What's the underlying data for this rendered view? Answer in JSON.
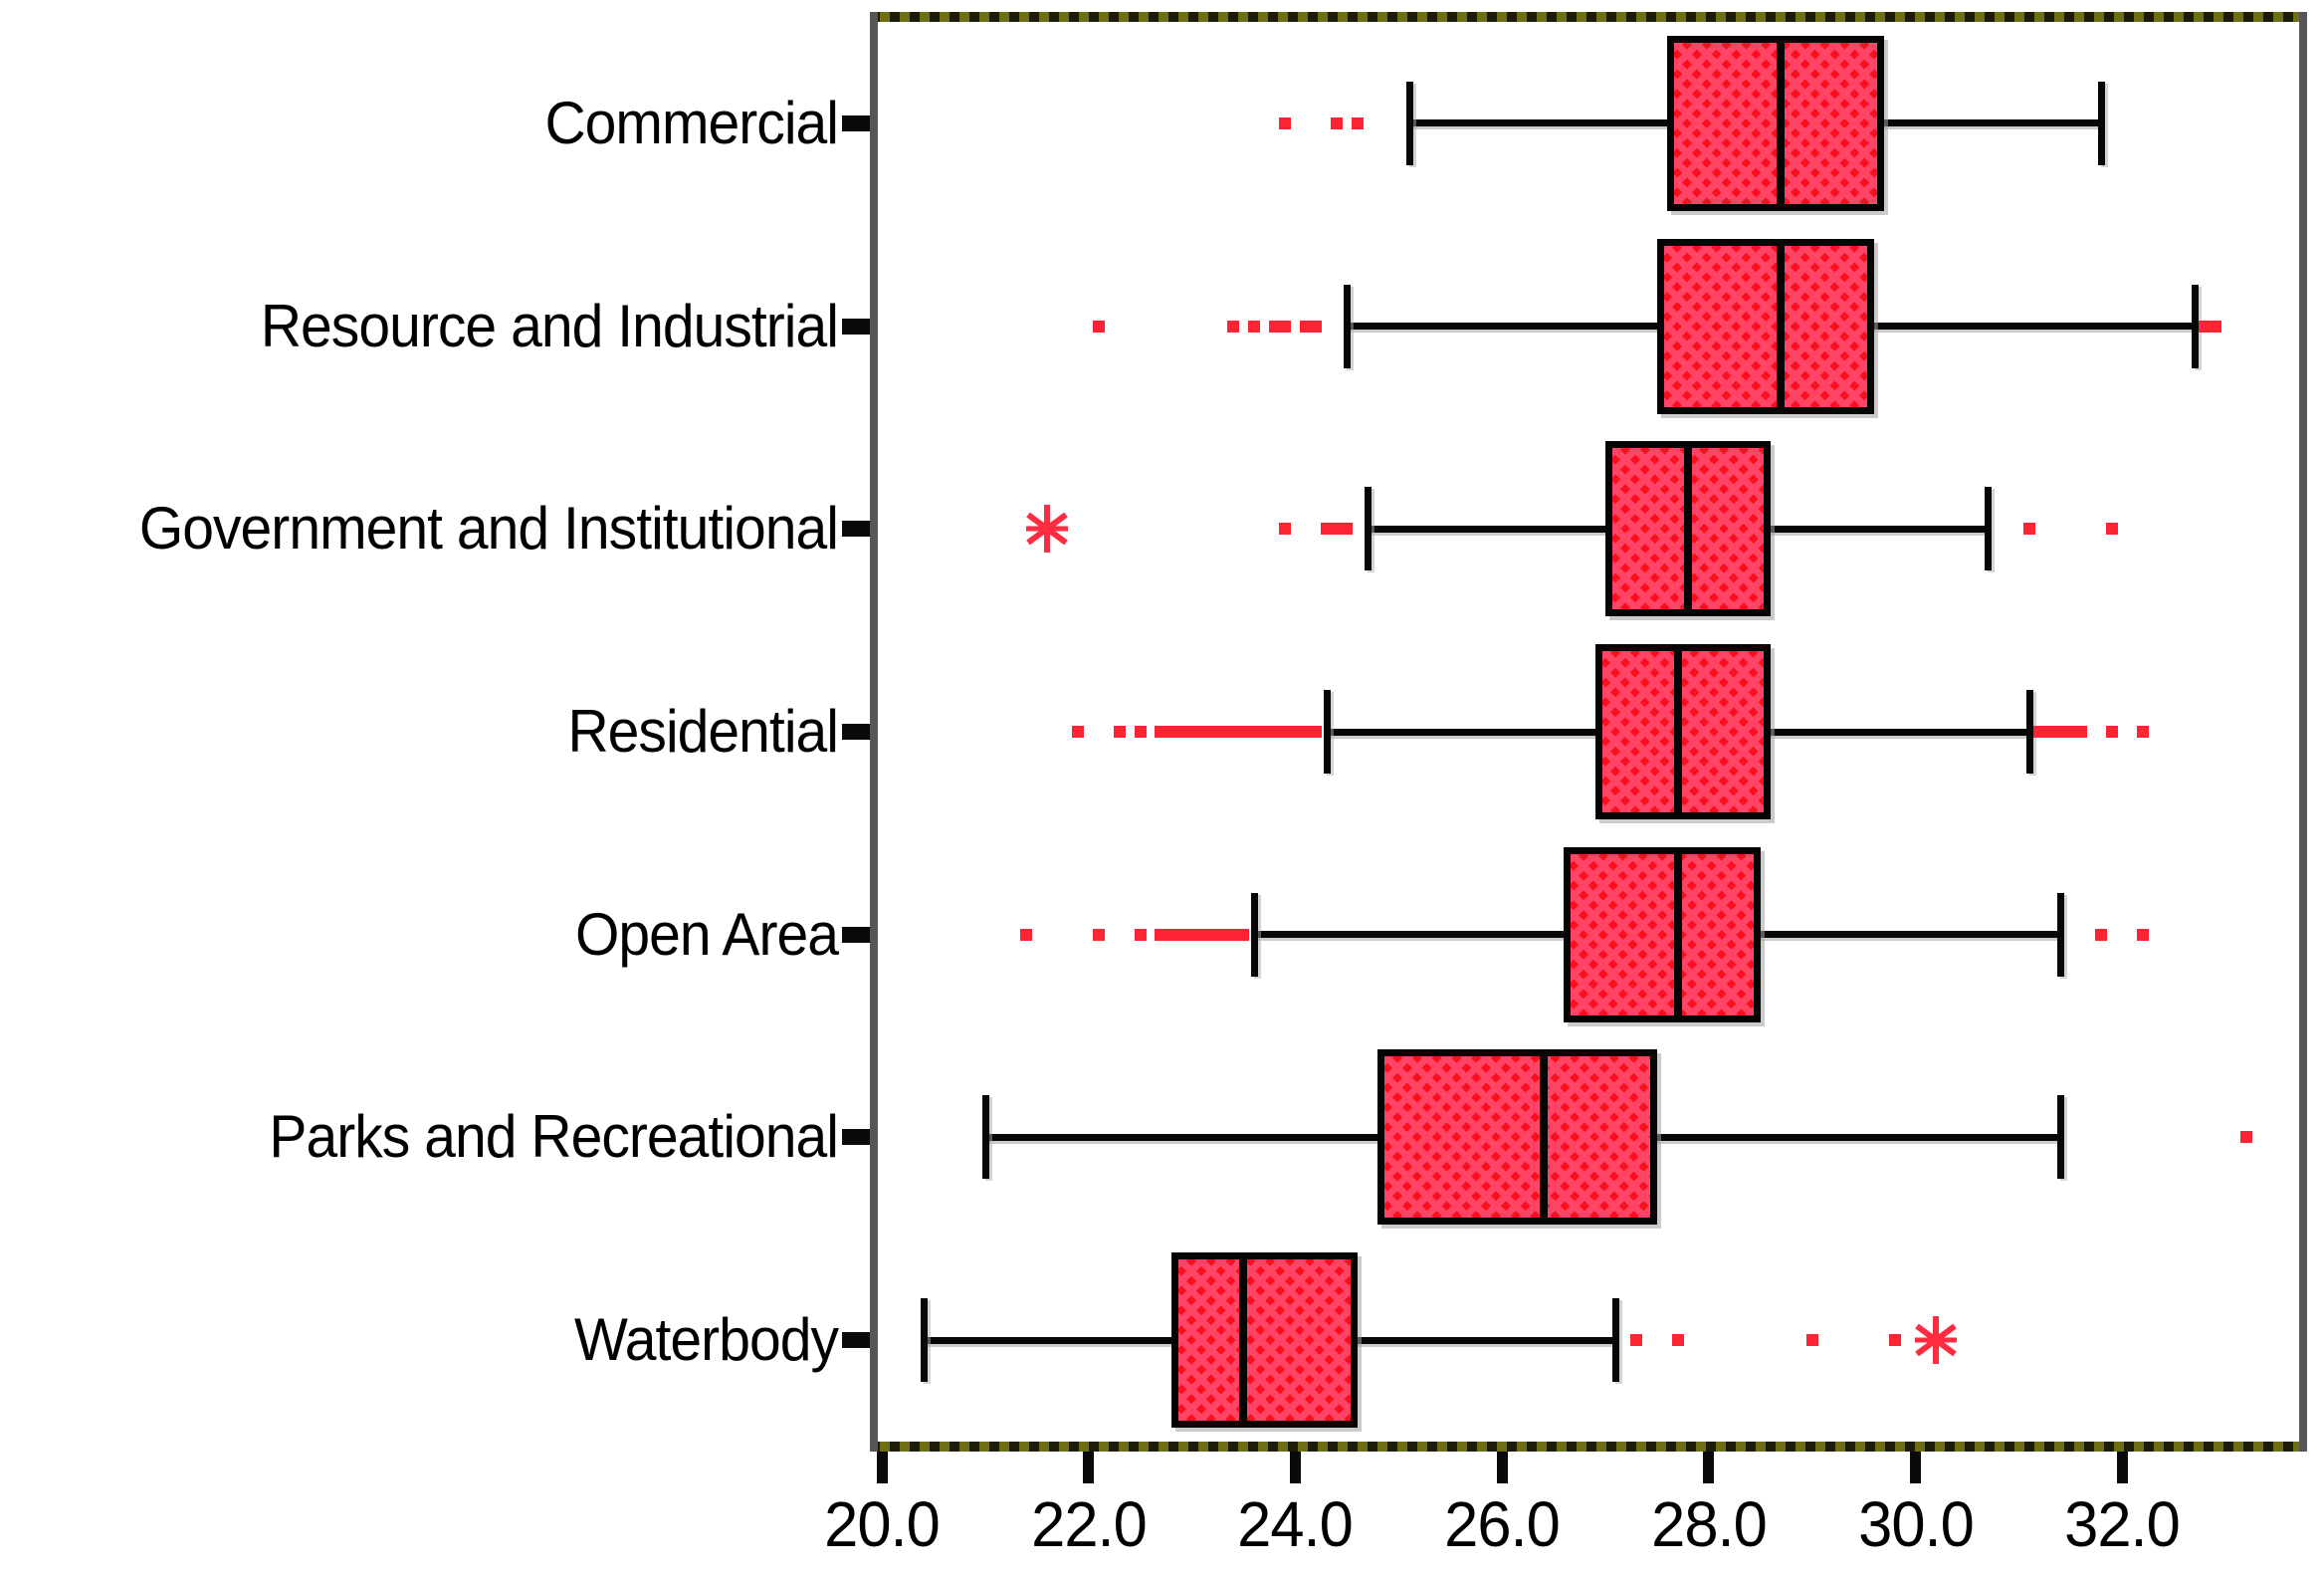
{
  "chart": {
    "background": "#ffffff",
    "box_fill": "#fa0f1e",
    "box_fill_alt": "#ff4466",
    "box_border": "#000000",
    "outlier_color": "#ff2433",
    "extreme_color": "#ff2b40",
    "frame_side_color": "#55555a",
    "frame_dash_dark": "#1c1c08",
    "frame_dash_olive": "#6e6e14"
  },
  "chart_data": {
    "type": "boxplot",
    "orientation": "horizontal",
    "title": "",
    "xlabel": "",
    "ylabel": "",
    "grid": false,
    "xlim": [
      19.9,
      33.8
    ],
    "x_ticks": [
      20.0,
      22.0,
      24.0,
      26.0,
      28.0,
      30.0,
      32.0
    ],
    "x_tick_labels": [
      "20.0",
      "22.0",
      "24.0",
      "26.0",
      "28.0",
      "30.0",
      "32.0"
    ],
    "legend": null,
    "categories": [
      {
        "label": "Commercial",
        "whisker_low": 25.1,
        "q1": 27.6,
        "median": 28.7,
        "q3": 29.7,
        "whisker_high": 31.8,
        "outliers": [
          23.9,
          24.4,
          24.6
        ],
        "extremes": []
      },
      {
        "label": "Resource and Industrial",
        "whisker_low": 24.5,
        "q1": 27.5,
        "median": 28.7,
        "q3": 29.6,
        "whisker_high": 32.7,
        "outliers": [
          22.1,
          23.4,
          23.6,
          23.8,
          23.9,
          24.1,
          24.2,
          32.8,
          32.9
        ],
        "extremes": []
      },
      {
        "label": "Government and Institutional",
        "whisker_low": 24.7,
        "q1": 27.0,
        "median": 27.8,
        "q3": 28.6,
        "whisker_high": 30.7,
        "outliers": [
          23.9,
          24.3,
          24.4,
          24.5,
          31.1,
          31.9
        ],
        "extremes": [
          21.6
        ]
      },
      {
        "label": "Residential",
        "whisker_low": 24.3,
        "q1": 26.9,
        "median": 27.7,
        "q3": 28.6,
        "whisker_high": 31.1,
        "outliers": [
          21.9,
          22.3,
          22.5,
          22.7,
          22.8,
          22.9,
          23.0,
          23.1,
          23.2,
          23.3,
          23.4,
          23.5,
          23.6,
          23.7,
          23.8,
          23.9,
          24.0,
          24.1,
          24.2,
          31.2,
          31.3,
          31.4,
          31.5,
          31.6,
          31.9,
          32.2
        ],
        "extremes": []
      },
      {
        "label": "Open Area",
        "whisker_low": 23.6,
        "q1": 26.6,
        "median": 27.7,
        "q3": 28.5,
        "whisker_high": 31.4,
        "outliers": [
          21.4,
          22.1,
          22.5,
          22.7,
          22.8,
          22.9,
          23.0,
          23.1,
          23.2,
          23.3,
          23.4,
          23.5,
          31.8,
          32.2
        ],
        "extremes": []
      },
      {
        "label": "Parks and Recreational",
        "whisker_low": 21.0,
        "q1": 24.8,
        "median": 26.4,
        "q3": 27.5,
        "whisker_high": 31.4,
        "outliers": [
          33.2
        ],
        "extremes": []
      },
      {
        "label": "Waterbody",
        "whisker_low": 20.4,
        "q1": 22.8,
        "median": 23.5,
        "q3": 24.6,
        "whisker_high": 27.1,
        "outliers": [
          27.3,
          27.7,
          29.0,
          29.8
        ],
        "extremes": [
          30.2
        ]
      }
    ]
  }
}
